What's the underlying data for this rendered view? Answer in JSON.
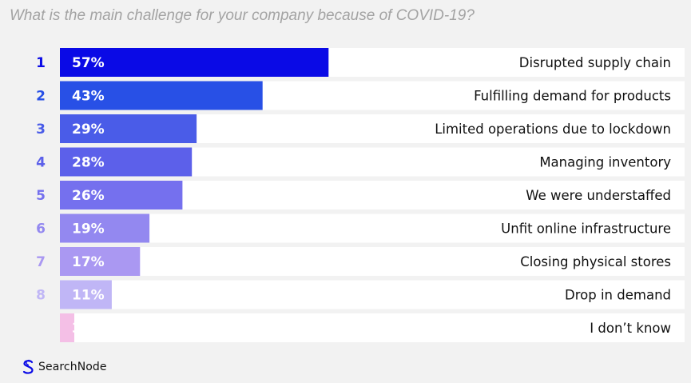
{
  "title": "What is the main challenge for your company because of COVID-19?",
  "brand": "SearchNode",
  "chart_data": {
    "type": "bar",
    "orientation": "horizontal",
    "title": "What is the main challenge for your company because of COVID-19?",
    "ranks": [
      "1",
      "2",
      "3",
      "4",
      "5",
      "6",
      "7",
      "8",
      ""
    ],
    "categories": [
      "Disrupted supply chain",
      "Fulfilling demand for products",
      "Limited operations due to lockdown",
      "Managing inventory",
      "We were understaffed",
      "Unfit online infrastructure",
      "Closing physical stores",
      "Drop in demand",
      "I don’t know"
    ],
    "values": [
      57,
      43,
      29,
      28,
      26,
      19,
      17,
      11,
      3
    ],
    "value_labels": [
      "57%",
      "43%",
      "29%",
      "28%",
      "26%",
      "19%",
      "17%",
      "11%",
      "3%"
    ],
    "unit": "%",
    "colors": [
      "#0a0ae6",
      "#2850e6",
      "#4a5ce8",
      "#5c60ea",
      "#7570ee",
      "#9388f0",
      "#aa98f2",
      "#c0b6f6",
      "#f4bfe6"
    ],
    "rank_colors": [
      "#0a0ae6",
      "#2850e6",
      "#4a5ce8",
      "#5c60ea",
      "#7570ee",
      "#9388f0",
      "#aa98f2",
      "#c0b6f6",
      "#f4bfe6"
    ],
    "label_colors": [
      "#ffffff",
      "#ffffff",
      "#ffffff",
      "#ffffff",
      "#ffffff",
      "#ffffff",
      "#ffffff",
      "#ffffff",
      "#f4bfe6"
    ],
    "grid": false,
    "legend": "none"
  }
}
